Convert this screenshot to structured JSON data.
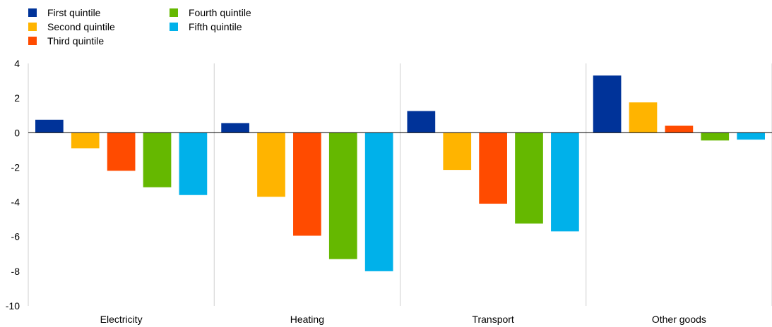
{
  "chart_data": {
    "type": "bar",
    "categories": [
      "Electricity",
      "Heating",
      "Transport",
      "Other goods"
    ],
    "series": [
      {
        "name": "First quintile",
        "color": "#003399",
        "values": [
          0.75,
          0.55,
          1.25,
          3.3
        ]
      },
      {
        "name": "Second quintile",
        "color": "#FFB400",
        "values": [
          -0.9,
          -3.7,
          -2.15,
          1.75
        ]
      },
      {
        "name": "Third quintile",
        "color": "#FF4B00",
        "values": [
          -2.2,
          -5.95,
          -4.1,
          0.4
        ]
      },
      {
        "name": "Fourth quintile",
        "color": "#65B800",
        "values": [
          -3.15,
          -7.3,
          -5.25,
          -0.45
        ]
      },
      {
        "name": "Fifth quintile",
        "color": "#00B1EA",
        "values": [
          -3.6,
          -8.0,
          -5.7,
          -0.4
        ]
      }
    ],
    "ylim": [
      -10,
      4
    ],
    "yticks": [
      4,
      2,
      0,
      -2,
      -4,
      -6,
      -8,
      -10
    ],
    "legend_position": "top-left",
    "grid": "vertical category separators"
  }
}
